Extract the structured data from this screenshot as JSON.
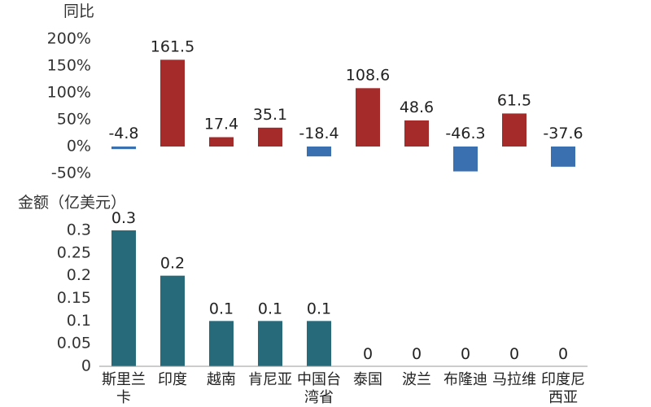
{
  "chart_data": [
    {
      "type": "bar",
      "ylabel": "同比",
      "categories": [
        "斯里兰卡",
        "印度",
        "越南",
        "肯尼亚",
        "中国台湾省",
        "泰国",
        "波兰",
        "布隆迪",
        "马拉维",
        "印度尼西亚"
      ],
      "values": [
        -4.8,
        161.5,
        17.4,
        35.1,
        -18.4,
        108.6,
        48.6,
        -46.3,
        61.5,
        -37.6
      ],
      "value_labels": [
        "-4.8",
        "161.5",
        "17.4",
        "35.1",
        "-18.4",
        "108.6",
        "48.6",
        "-46.3",
        "61.5",
        "-37.6"
      ],
      "yticks": [
        "200%",
        "150%",
        "100%",
        "50%",
        "0%",
        "-50%"
      ],
      "ytick_values": [
        200,
        150,
        100,
        50,
        0,
        -50
      ],
      "ylim": [
        -50,
        200
      ],
      "colors": {
        "positive": "#a52a2a",
        "negative": "#3a6fb0"
      },
      "grid": false
    },
    {
      "type": "bar",
      "ylabel": "金额（亿美元）",
      "categories": [
        "斯里兰卡",
        "印度",
        "越南",
        "肯尼亚",
        "中国台湾省",
        "泰国",
        "波兰",
        "布隆迪",
        "马拉维",
        "印度尼西亚"
      ],
      "category_lines": [
        [
          "斯里兰",
          "卡"
        ],
        [
          "印度"
        ],
        [
          "越南"
        ],
        [
          "肯尼亚"
        ],
        [
          "中国台",
          "湾省"
        ],
        [
          "泰国"
        ],
        [
          "波兰"
        ],
        [
          "布隆迪"
        ],
        [
          "马拉维"
        ],
        [
          "印度尼",
          "西亚"
        ]
      ],
      "values": [
        0.3,
        0.2,
        0.1,
        0.1,
        0.1,
        0,
        0,
        0,
        0,
        0
      ],
      "value_labels": [
        "0.3",
        "0.2",
        "0.1",
        "0.1",
        "0.1",
        "0",
        "0",
        "0",
        "0",
        "0"
      ],
      "yticks": [
        "0.3",
        "0.25",
        "0.2",
        "0.15",
        "0.1",
        "0.05",
        "0"
      ],
      "ytick_values": [
        0.3,
        0.25,
        0.2,
        0.15,
        0.1,
        0.05,
        0
      ],
      "ylim": [
        0,
        0.3
      ],
      "color": "#276a7a",
      "grid": false
    }
  ]
}
